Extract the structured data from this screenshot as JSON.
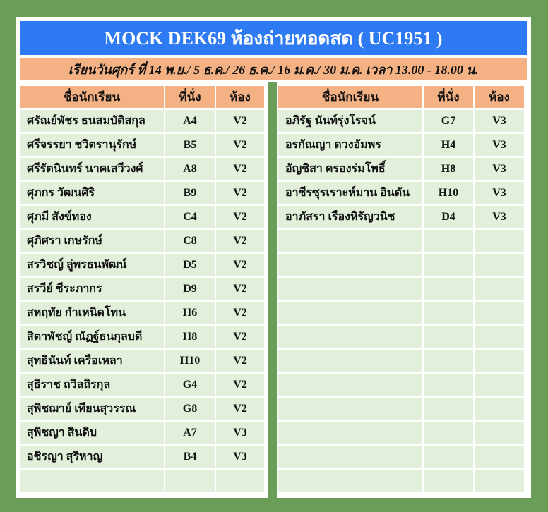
{
  "title": "MOCK DEK69  ห้องถ่ายทอดสด ( UC1951 )",
  "subtitle": "เรียนวันศุกร์ ที่ 14 พ.ย./ 5 ธ.ค./ 26 ธ.ค./ 16 ม.ค./ 30 ม.ค. เวลา 13.00 - 18.00 น.",
  "colors": {
    "background": "#6a9e58",
    "title": "#2e7af2",
    "header": "#f4b183",
    "cell": "#e2efda"
  },
  "headers": {
    "name": "ชื่อนักเรียน",
    "seat": "ที่นั่ง",
    "room": "ห้อง"
  },
  "left_rows": [
    {
      "name": "ศรัณย์พัชร ธนสมบัติสกุล",
      "seat": "A4",
      "room": "V2"
    },
    {
      "name": "ศรีจรรยา ชวิตรานุรักษ์",
      "seat": "B5",
      "room": "V2"
    },
    {
      "name": "ศรีรัตนินทร์ นาคเสวีวงศ์",
      "seat": "A8",
      "room": "V2"
    },
    {
      "name": "ศุภกร วัฒนศิริ",
      "seat": "B9",
      "room": "V2"
    },
    {
      "name": "ศุภมี สังข์ทอง",
      "seat": "C4",
      "room": "V2"
    },
    {
      "name": "ศุภิศรา เกษรักษ์",
      "seat": "C8",
      "room": "V2"
    },
    {
      "name": "สรวิชญ์ ลู่พรธนพัฒน์",
      "seat": "D5",
      "room": "V2"
    },
    {
      "name": "สรวีย์ ชีระภากร",
      "seat": "D9",
      "room": "V2"
    },
    {
      "name": "สหฤทัย กำเหนิดโทน",
      "seat": "H6",
      "room": "V2"
    },
    {
      "name": "สิตาพัชญ์ ณัฏฐ์ธนกุลบดี",
      "seat": "H8",
      "room": "V2"
    },
    {
      "name": "สุทธินันท์ เครือเหลา",
      "seat": "H10",
      "room": "V2"
    },
    {
      "name": "สุธิราช ถวิลถิรกุล",
      "seat": "G4",
      "room": "V2"
    },
    {
      "name": "สุพิชฌาย์ เทียนสุวรรณ",
      "seat": "G8",
      "room": "V2"
    },
    {
      "name": "สุพิชญา สินดิบ",
      "seat": "A7",
      "room": "V3"
    },
    {
      "name": "อชิรญา สุริหาญ",
      "seat": "B4",
      "room": "V3"
    },
    {
      "name": "",
      "seat": "",
      "room": ""
    }
  ],
  "right_rows": [
    {
      "name": "อภิรัฐ นันท์รุ่งโรจน์",
      "seat": "G7",
      "room": "V3"
    },
    {
      "name": "อรกัณญา ดวงอัมพร",
      "seat": "H4",
      "room": "V3"
    },
    {
      "name": "อัญชิสา ครองร่มโพธิ์",
      "seat": "H8",
      "room": "V3"
    },
    {
      "name": "อาซีรซุรเราะห์มาน อินตัน",
      "seat": "H10",
      "room": "V3"
    },
    {
      "name": "อาภัสรา เรืองหิรัญวนิช",
      "seat": "D4",
      "room": "V3"
    },
    {
      "name": "",
      "seat": "",
      "room": ""
    },
    {
      "name": "",
      "seat": "",
      "room": ""
    },
    {
      "name": "",
      "seat": "",
      "room": ""
    },
    {
      "name": "",
      "seat": "",
      "room": ""
    },
    {
      "name": "",
      "seat": "",
      "room": ""
    },
    {
      "name": "",
      "seat": "",
      "room": ""
    },
    {
      "name": "",
      "seat": "",
      "room": ""
    },
    {
      "name": "",
      "seat": "",
      "room": ""
    },
    {
      "name": "",
      "seat": "",
      "room": ""
    },
    {
      "name": "",
      "seat": "",
      "room": ""
    },
    {
      "name": "",
      "seat": "",
      "room": ""
    }
  ]
}
